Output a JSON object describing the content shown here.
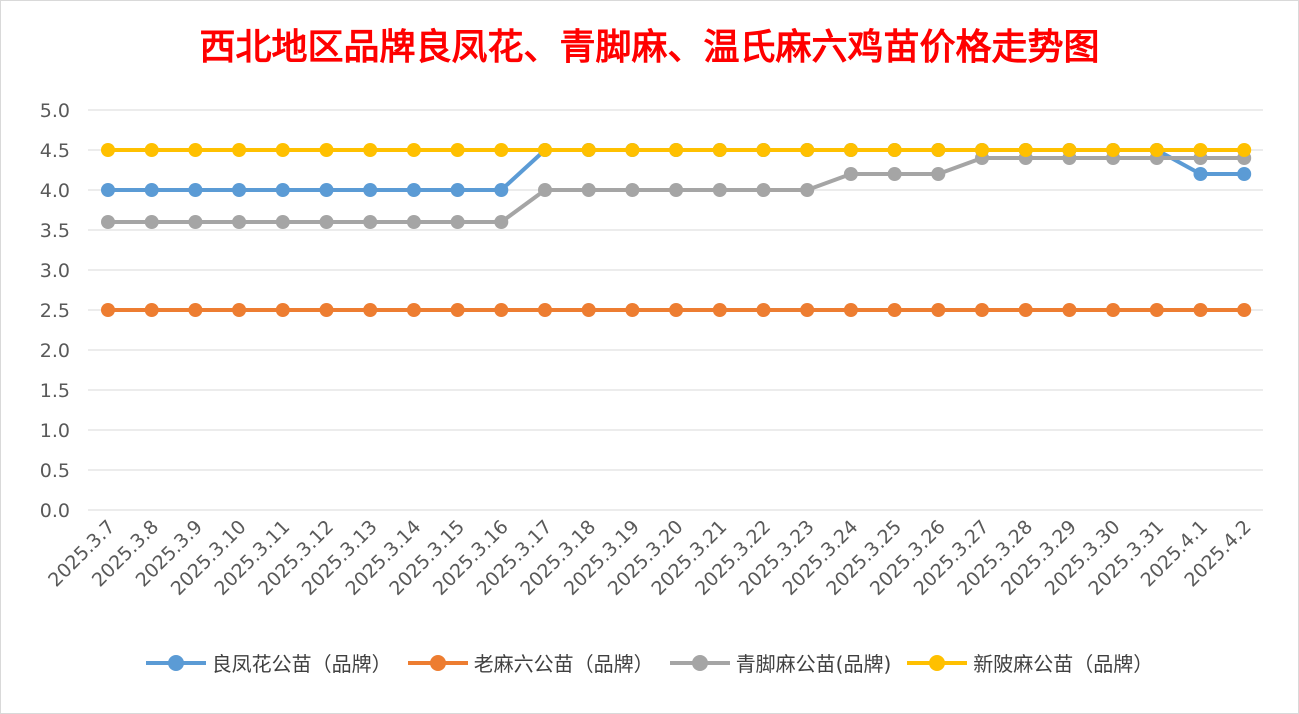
{
  "chart_data": {
    "type": "line",
    "title": "西北地区品牌良凤花、青脚麻、温氏麻六鸡苗价格走势图",
    "xlabel": "",
    "ylabel": "",
    "ylim": [
      0,
      5.0
    ],
    "yticks": [
      "0.0",
      "0.5",
      "1.0",
      "1.5",
      "2.0",
      "2.5",
      "3.0",
      "3.5",
      "4.0",
      "4.5",
      "5.0"
    ],
    "grid": true,
    "legend_position": "bottom",
    "categories": [
      "2025.3.7",
      "2025.3.8",
      "2025.3.9",
      "2025.3.10",
      "2025.3.11",
      "2025.3.12",
      "2025.3.13",
      "2025.3.14",
      "2025.3.15",
      "2025.3.16",
      "2025.3.17",
      "2025.3.18",
      "2025.3.19",
      "2025.3.20",
      "2025.3.21",
      "2025.3.22",
      "2025.3.23",
      "2025.3.24",
      "2025.3.25",
      "2025.3.26",
      "2025.3.27",
      "2025.3.28",
      "2025.3.29",
      "2025.3.30",
      "2025.3.31",
      "2025.4.1",
      "2025.4.2"
    ],
    "series": [
      {
        "name": "良凤花公苗（品牌）",
        "color": "#5b9bd5",
        "values": [
          4.0,
          4.0,
          4.0,
          4.0,
          4.0,
          4.0,
          4.0,
          4.0,
          4.0,
          4.0,
          4.5,
          4.5,
          4.5,
          4.5,
          4.5,
          4.5,
          4.5,
          4.5,
          4.5,
          4.5,
          4.5,
          4.5,
          4.5,
          4.5,
          4.5,
          4.2,
          4.2
        ]
      },
      {
        "name": "老麻六公苗（品牌）",
        "color": "#ed7d31",
        "values": [
          2.5,
          2.5,
          2.5,
          2.5,
          2.5,
          2.5,
          2.5,
          2.5,
          2.5,
          2.5,
          2.5,
          2.5,
          2.5,
          2.5,
          2.5,
          2.5,
          2.5,
          2.5,
          2.5,
          2.5,
          2.5,
          2.5,
          2.5,
          2.5,
          2.5,
          2.5,
          2.5
        ]
      },
      {
        "name": "青脚麻公苗(品牌)",
        "color": "#a5a5a5",
        "values": [
          3.6,
          3.6,
          3.6,
          3.6,
          3.6,
          3.6,
          3.6,
          3.6,
          3.6,
          3.6,
          4.0,
          4.0,
          4.0,
          4.0,
          4.0,
          4.0,
          4.0,
          4.2,
          4.2,
          4.2,
          4.4,
          4.4,
          4.4,
          4.4,
          4.4,
          4.4,
          4.4
        ]
      },
      {
        "name": "新陂麻公苗（品牌）",
        "color": "#ffc000",
        "values": [
          4.5,
          4.5,
          4.5,
          4.5,
          4.5,
          4.5,
          4.5,
          4.5,
          4.5,
          4.5,
          4.5,
          4.5,
          4.5,
          4.5,
          4.5,
          4.5,
          4.5,
          4.5,
          4.5,
          4.5,
          4.5,
          4.5,
          4.5,
          4.5,
          4.5,
          4.5,
          4.5
        ]
      }
    ]
  }
}
